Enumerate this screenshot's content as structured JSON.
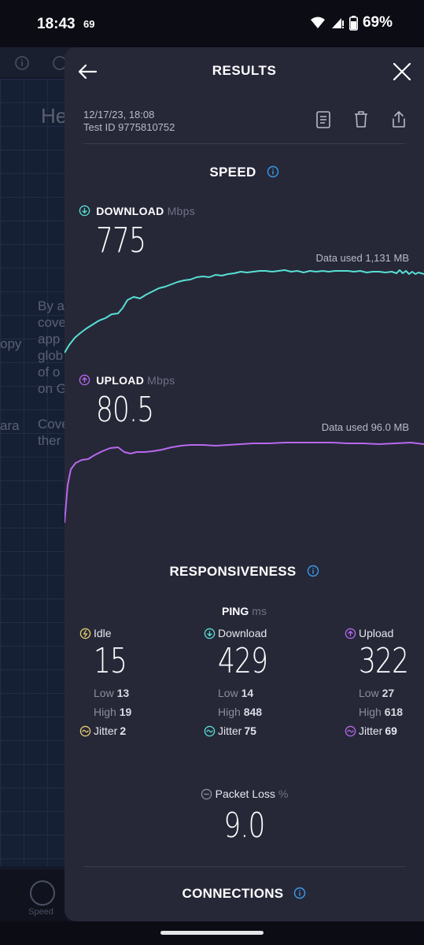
{
  "status_bar": {
    "time": "18:43",
    "notification": "69",
    "battery": "69%"
  },
  "background": {
    "para1": [
      "By a",
      "cove",
      "app",
      "glob",
      "of o",
      "on G"
    ],
    "para2": [
      "Cove",
      "ther"
    ],
    "heading": "He",
    "side_words": [
      "opy",
      "ara"
    ],
    "bottom_nav_label": "Speed"
  },
  "header": {
    "title": "RESULTS"
  },
  "meta": {
    "datetime": "12/17/23, 18:08",
    "test_id": "Test ID 9775810752"
  },
  "speed": {
    "title": "SPEED",
    "download": {
      "label": "DOWNLOAD",
      "unit": "Mbps",
      "value": "775",
      "data_used": "Data used 1,131 MB",
      "color": "#58e0d4"
    },
    "upload": {
      "label": "UPLOAD",
      "unit": "Mbps",
      "value": "80.5",
      "data_used": "Data used 96.0 MB",
      "color": "#b868ee"
    }
  },
  "responsiveness": {
    "title": "RESPONSIVENESS",
    "ping_label": "PING",
    "ping_unit": "ms",
    "idle": {
      "label": "Idle",
      "value": "15",
      "low_label": "Low",
      "low": "13",
      "high_label": "High",
      "high": "19",
      "jitter_label": "Jitter",
      "jitter": "2",
      "color": "#e8d070"
    },
    "download": {
      "label": "Download",
      "value": "429",
      "low_label": "Low",
      "low": "14",
      "high_label": "High",
      "high": "848",
      "jitter_label": "Jitter",
      "jitter": "75",
      "color": "#58e0d4"
    },
    "upload": {
      "label": "Upload",
      "value": "322",
      "low_label": "Low",
      "low": "27",
      "high_label": "High",
      "high": "618",
      "jitter_label": "Jitter",
      "jitter": "69",
      "color": "#b868ee"
    },
    "packet_loss": {
      "label": "Packet Loss",
      "unit": "%",
      "value": "9.0"
    }
  },
  "connections": {
    "title": "CONNECTIONS"
  },
  "colors": {
    "accent_blue": "#3a9bea",
    "sheet_bg": "#262838"
  }
}
